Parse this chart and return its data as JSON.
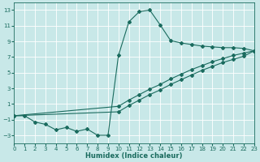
{
  "xlabel": "Humidex (Indice chaleur)",
  "background_color": "#c8e8e8",
  "line_color": "#1a6b5e",
  "grid_color": "#ffffff",
  "xlim": [
    0,
    23
  ],
  "ylim": [
    -4.0,
    14.0
  ],
  "xticks": [
    0,
    1,
    2,
    3,
    4,
    5,
    6,
    7,
    8,
    9,
    10,
    11,
    12,
    13,
    14,
    15,
    16,
    17,
    18,
    19,
    20,
    21,
    22,
    23
  ],
  "yticks": [
    -3,
    -1,
    1,
    3,
    5,
    7,
    9,
    11,
    13
  ],
  "main_x": [
    0,
    1,
    2,
    3,
    4,
    5,
    6,
    7,
    8,
    9,
    10,
    11,
    12,
    13,
    14,
    15,
    16,
    17,
    18,
    19,
    20,
    21,
    22,
    23
  ],
  "main_y": [
    -0.5,
    -0.5,
    -1.3,
    -1.6,
    -2.3,
    -2.0,
    -2.5,
    -2.2,
    -3.0,
    -3.0,
    7.2,
    11.5,
    12.8,
    13.0,
    11.1,
    9.1,
    8.8,
    8.6,
    8.4,
    8.3,
    8.2,
    8.2,
    8.1,
    7.8
  ],
  "line2_x": [
    0,
    10,
    11,
    12,
    13,
    14,
    15,
    16,
    17,
    18,
    19,
    20,
    21,
    22,
    23
  ],
  "line2_y": [
    -0.5,
    0.0,
    0.8,
    1.5,
    2.2,
    2.8,
    3.5,
    4.1,
    4.7,
    5.3,
    5.8,
    6.3,
    6.7,
    7.1,
    7.8
  ],
  "line3_x": [
    0,
    10,
    11,
    12,
    13,
    14,
    15,
    16,
    17,
    18,
    19,
    20,
    21,
    22,
    23
  ],
  "line3_y": [
    -0.5,
    0.7,
    1.5,
    2.2,
    2.9,
    3.5,
    4.2,
    4.8,
    5.4,
    5.9,
    6.4,
    6.8,
    7.2,
    7.5,
    7.8
  ]
}
